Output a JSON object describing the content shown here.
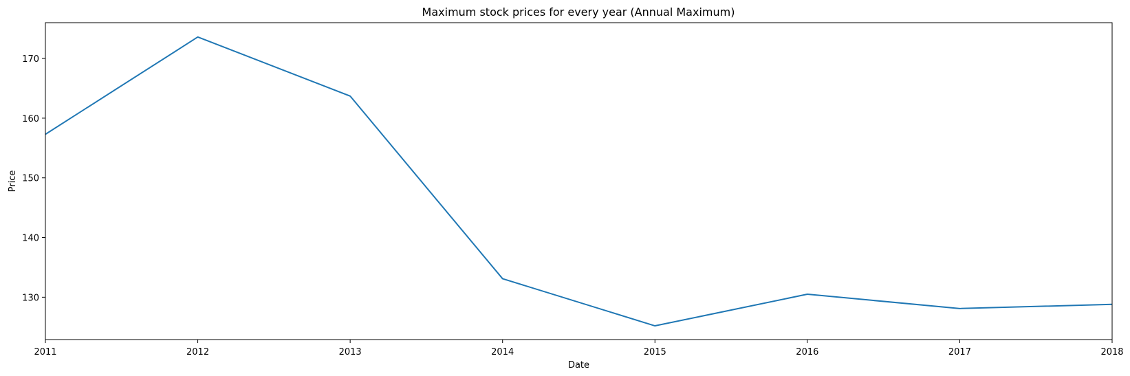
{
  "chart_data": {
    "type": "line",
    "title": "Maximum stock prices for every year (Annual Maximum)",
    "xlabel": "Date",
    "ylabel": "Price",
    "x": [
      "2011",
      "2012",
      "2013",
      "2014",
      "2015",
      "2016",
      "2017",
      "2018"
    ],
    "series": [
      {
        "name": "Price",
        "color": "#1f77b4",
        "values": [
          157.3,
          173.6,
          163.7,
          133.1,
          125.2,
          130.5,
          128.1,
          128.8
        ]
      }
    ],
    "xlim": [
      2011,
      2018
    ],
    "ylim": [
      122.9,
      176.0
    ],
    "yticks": [
      130,
      140,
      150,
      160,
      170
    ],
    "xticks": [
      "2011",
      "2012",
      "2013",
      "2014",
      "2015",
      "2016",
      "2017",
      "2018"
    ],
    "grid": false,
    "legend": "none"
  }
}
